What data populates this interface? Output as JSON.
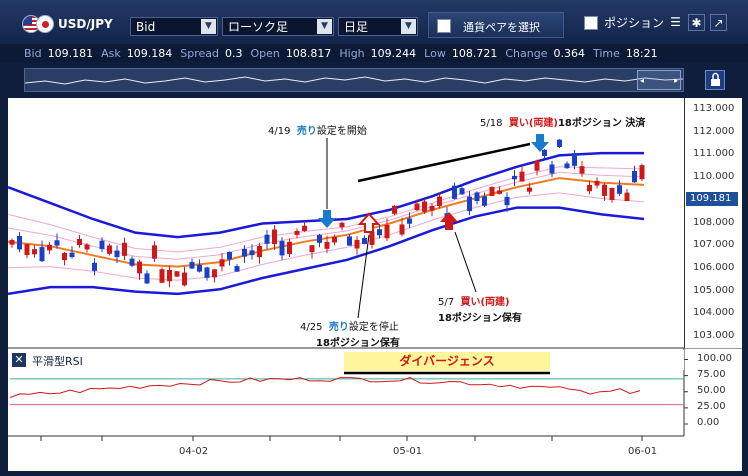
{
  "toolbar": {
    "pair": "USD/JPY",
    "price_type": "Bid",
    "chart_style": "ローソク足",
    "timeframe": "日足",
    "select_pair_button": "通貨ペアを選択",
    "position_toggle": "ポジション"
  },
  "quote": {
    "bid_label": "Bid",
    "bid": "109.181",
    "ask_label": "Ask",
    "ask": "109.184",
    "spread_label": "Spread",
    "spread": "0.3",
    "open_label": "Open",
    "open": "108.817",
    "high_label": "High",
    "high": "109.244",
    "low_label": "Low",
    "low": "108.721",
    "change_label": "Change",
    "change": "0.364",
    "time_label": "Time",
    "time": "18:21"
  },
  "chart": {
    "current_price": "109.181",
    "price_ticks": [
      "113.000",
      "112.000",
      "111.000",
      "110.000",
      "109.000",
      "108.000",
      "107.000",
      "106.000",
      "105.000",
      "104.000",
      "103.000"
    ],
    "rsi_ticks": [
      "100.00",
      "75.00",
      "50.00",
      "25.00",
      "0.00"
    ],
    "date_ticks": [
      "04-02",
      "05-01",
      "06-01"
    ],
    "rsi_title": "平滑型RSI",
    "divergence_label": "ダイバージェンス"
  },
  "annotations": {
    "a1": {
      "date": "4/19",
      "action": "売り",
      "rest": "設定を開始"
    },
    "a2": {
      "date": "4/25",
      "action": "売り",
      "rest": "設定を停止",
      "line2": "18ポジション保有"
    },
    "a3": {
      "date": "5/7",
      "action": "買い(両建)",
      "line2": "18ポジション保有"
    },
    "a4": {
      "date": "5/18",
      "action": "買い(両建)",
      "rest": "18ポジション 決済"
    }
  },
  "colors": {
    "bull": "#d01818",
    "bear": "#1a3fc8",
    "band": "#1a1ad8",
    "ma": "#f07a20",
    "rsi": "#d01818"
  },
  "chart_data": {
    "type": "candlestick",
    "x_range": [
      "03-05",
      "06-04"
    ],
    "y_range": [
      102.6,
      113.6
    ],
    "series": [
      {
        "name": "bollinger-upper",
        "values_approx": [
          109.6,
          108.9,
          108.2,
          107.6,
          107.4,
          107.6,
          108.0,
          108.1,
          108.2,
          108.6,
          109.2,
          109.9,
          110.5,
          111.0,
          111.1,
          111.1
        ]
      },
      {
        "name": "moving-average",
        "values_approx": [
          107.2,
          107.0,
          106.6,
          106.2,
          106.1,
          106.3,
          106.8,
          107.2,
          107.5,
          108.0,
          108.6,
          109.1,
          109.6,
          110.0,
          109.8,
          109.7
        ]
      },
      {
        "name": "bollinger-lower",
        "values_approx": [
          104.9,
          105.2,
          105.2,
          105.0,
          104.9,
          105.1,
          105.6,
          106.0,
          106.4,
          107.0,
          107.7,
          108.3,
          108.7,
          108.7,
          108.4,
          108.2
        ]
      }
    ],
    "rsi": {
      "reference_lines": [
        70,
        30
      ],
      "range": [
        0,
        100
      ]
    }
  }
}
